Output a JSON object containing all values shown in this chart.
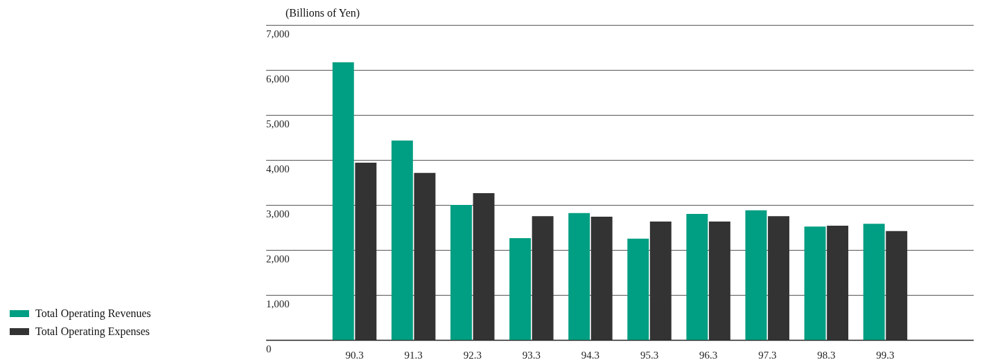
{
  "chart_data": {
    "type": "bar",
    "ylabel": "(Billions of Yen)",
    "categories": [
      "90.3",
      "91.3",
      "92.3",
      "93.3",
      "94.3",
      "95.3",
      "96.3",
      "97.3",
      "98.3",
      "99.3"
    ],
    "series": [
      {
        "name": "Total Operating Revenues",
        "color": "#009e82",
        "values": [
          6170,
          4430,
          3000,
          2260,
          2820,
          2250,
          2800,
          2880,
          2520,
          2580
        ]
      },
      {
        "name": "Total Operating Expenses",
        "color": "#333333",
        "values": [
          3940,
          3710,
          3260,
          2750,
          2740,
          2630,
          2630,
          2750,
          2540,
          2420
        ]
      }
    ],
    "ylim": [
      0,
      7000
    ],
    "yticks": [
      {
        "value": 0,
        "label": "0"
      },
      {
        "value": 1000,
        "label": "1,000"
      },
      {
        "value": 2000,
        "label": "2,000"
      },
      {
        "value": 3000,
        "label": "3,000"
      },
      {
        "value": 4000,
        "label": "4,000"
      },
      {
        "value": 5000,
        "label": "5,000"
      },
      {
        "value": 6000,
        "label": "6,000"
      },
      {
        "value": 7000,
        "label": "7,000"
      }
    ],
    "grid": "y",
    "legend": "bottom left"
  }
}
